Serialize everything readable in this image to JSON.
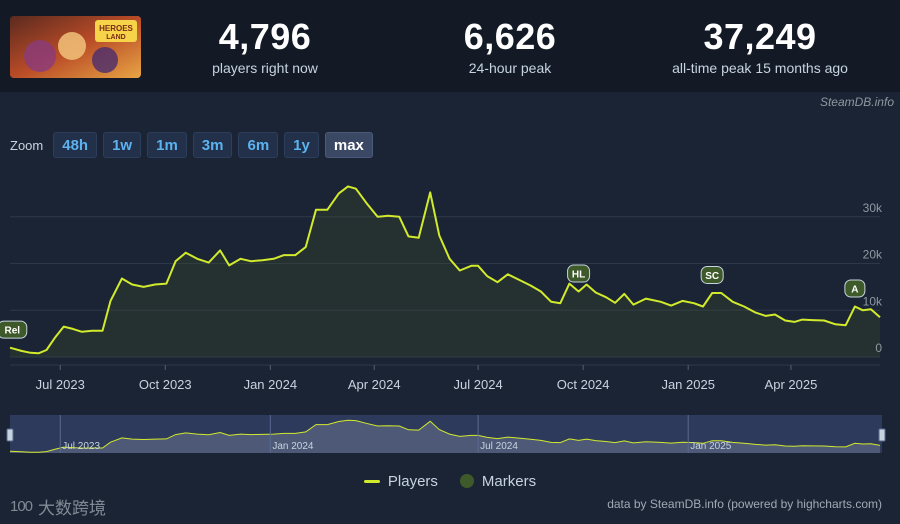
{
  "header": {
    "stats": [
      {
        "value": "4,796",
        "label": "players right now"
      },
      {
        "value": "6,626",
        "label": "24-hour peak"
      },
      {
        "value": "37,249",
        "label": "all-time peak 15 months ago"
      }
    ],
    "game_logo_text": "HEROES LAND"
  },
  "credit_top": "SteamDB.info",
  "zoom": {
    "label": "Zoom",
    "buttons": [
      "48h",
      "1w",
      "1m",
      "3m",
      "6m",
      "1y",
      "max"
    ],
    "active": "max"
  },
  "legend": {
    "players": "Players",
    "markers": "Markers"
  },
  "credit_bottom": "data by SteamDB.info (powered by highcharts.com)",
  "watermark": {
    "logo": "100",
    "text": "大数跨境"
  },
  "colors": {
    "line": "#d2ea2c",
    "marker": "#3f5a2a",
    "navigator_bg": "#3b4a78"
  },
  "chart_data": {
    "type": "area",
    "title": "",
    "xlabel": "",
    "ylabel": "",
    "x_start": "2023-05-18",
    "x_end": "2025-06-18",
    "ylim": [
      0,
      40000
    ],
    "yticks": [
      0,
      10000,
      20000,
      30000
    ],
    "ytick_labels": [
      "0",
      "10k",
      "20k",
      "30k"
    ],
    "xticks": [
      "2023-07-01",
      "2023-10-01",
      "2024-01-01",
      "2024-04-01",
      "2024-07-01",
      "2024-10-01",
      "2025-01-01",
      "2025-04-01"
    ],
    "xtick_labels": [
      "Jul 2023",
      "Oct 2023",
      "Jan 2024",
      "Apr 2024",
      "Jul 2024",
      "Oct 2024",
      "Jan 2025",
      "Apr 2025"
    ],
    "navigator_ticks": [
      "Jul 2023",
      "Jan 2024",
      "Jul 2024",
      "Jan 2025"
    ],
    "grid": true,
    "series": [
      {
        "name": "Players",
        "points": [
          [
            "2023-05-18",
            2000
          ],
          [
            "2023-05-28",
            1300
          ],
          [
            "2023-06-05",
            900
          ],
          [
            "2023-06-12",
            800
          ],
          [
            "2023-06-19",
            1500
          ],
          [
            "2023-06-26",
            4000
          ],
          [
            "2023-07-04",
            6500
          ],
          [
            "2023-07-12",
            6000
          ],
          [
            "2023-07-20",
            5400
          ],
          [
            "2023-07-29",
            5600
          ],
          [
            "2023-08-07",
            5600
          ],
          [
            "2023-08-14",
            12000
          ],
          [
            "2023-08-24",
            16800
          ],
          [
            "2023-09-02",
            15500
          ],
          [
            "2023-09-12",
            15000
          ],
          [
            "2023-09-22",
            15500
          ],
          [
            "2023-10-02",
            15700
          ],
          [
            "2023-10-10",
            20500
          ],
          [
            "2023-10-19",
            22300
          ],
          [
            "2023-10-29",
            21000
          ],
          [
            "2023-11-08",
            20200
          ],
          [
            "2023-11-18",
            22800
          ],
          [
            "2023-11-26",
            19600
          ],
          [
            "2023-12-06",
            21000
          ],
          [
            "2023-12-15",
            20500
          ],
          [
            "2023-12-25",
            20700
          ],
          [
            "2024-01-04",
            21000
          ],
          [
            "2024-01-13",
            21800
          ],
          [
            "2024-01-23",
            21800
          ],
          [
            "2024-02-01",
            23500
          ],
          [
            "2024-02-10",
            31500
          ],
          [
            "2024-02-20",
            31500
          ],
          [
            "2024-03-01",
            35000
          ],
          [
            "2024-03-09",
            36500
          ],
          [
            "2024-03-16",
            36000
          ],
          [
            "2024-03-25",
            33000
          ],
          [
            "2024-04-04",
            30000
          ],
          [
            "2024-04-13",
            30200
          ],
          [
            "2024-04-23",
            30000
          ],
          [
            "2024-05-01",
            25800
          ],
          [
            "2024-05-10",
            25500
          ],
          [
            "2024-05-20",
            35200
          ],
          [
            "2024-05-28",
            26000
          ],
          [
            "2024-06-06",
            21000
          ],
          [
            "2024-06-15",
            18500
          ],
          [
            "2024-06-25",
            19500
          ],
          [
            "2024-07-01",
            19500
          ],
          [
            "2024-07-09",
            17300
          ],
          [
            "2024-07-18",
            16000
          ],
          [
            "2024-07-27",
            17700
          ],
          [
            "2024-08-06",
            16500
          ],
          [
            "2024-08-16",
            15300
          ],
          [
            "2024-08-25",
            14000
          ],
          [
            "2024-09-03",
            11800
          ],
          [
            "2024-09-11",
            11500
          ],
          [
            "2024-09-19",
            15700
          ],
          [
            "2024-09-27",
            14000
          ],
          [
            "2024-10-04",
            15500
          ],
          [
            "2024-10-12",
            13800
          ],
          [
            "2024-10-21",
            12800
          ],
          [
            "2024-10-29",
            11600
          ],
          [
            "2024-11-06",
            13500
          ],
          [
            "2024-11-14",
            11200
          ],
          [
            "2024-11-25",
            12500
          ],
          [
            "2024-12-08",
            11800
          ],
          [
            "2024-12-17",
            11000
          ],
          [
            "2024-12-27",
            12000
          ],
          [
            "2025-01-06",
            11500
          ],
          [
            "2025-01-14",
            10800
          ],
          [
            "2025-01-22",
            13700
          ],
          [
            "2025-01-30",
            13700
          ],
          [
            "2025-02-09",
            11800
          ],
          [
            "2025-02-19",
            10800
          ],
          [
            "2025-03-01",
            9500
          ],
          [
            "2025-03-10",
            8800
          ],
          [
            "2025-03-18",
            9100
          ],
          [
            "2025-03-27",
            7800
          ],
          [
            "2025-04-04",
            7500
          ],
          [
            "2025-04-11",
            8000
          ],
          [
            "2025-04-20",
            7900
          ],
          [
            "2025-04-30",
            7800
          ],
          [
            "2025-05-10",
            7000
          ],
          [
            "2025-05-19",
            6800
          ],
          [
            "2025-05-27",
            10800
          ],
          [
            "2025-06-03",
            10000
          ],
          [
            "2025-06-10",
            10200
          ],
          [
            "2025-06-18",
            8500
          ]
        ]
      }
    ],
    "markers": [
      {
        "label": "Rel",
        "x": "2023-05-20",
        "y": 2000
      },
      {
        "label": "HL",
        "x": "2024-09-27",
        "y": 14000
      },
      {
        "label": "SC",
        "x": "2025-01-22",
        "y": 13700
      },
      {
        "label": "A",
        "x": "2025-05-27",
        "y": 10800
      }
    ]
  }
}
